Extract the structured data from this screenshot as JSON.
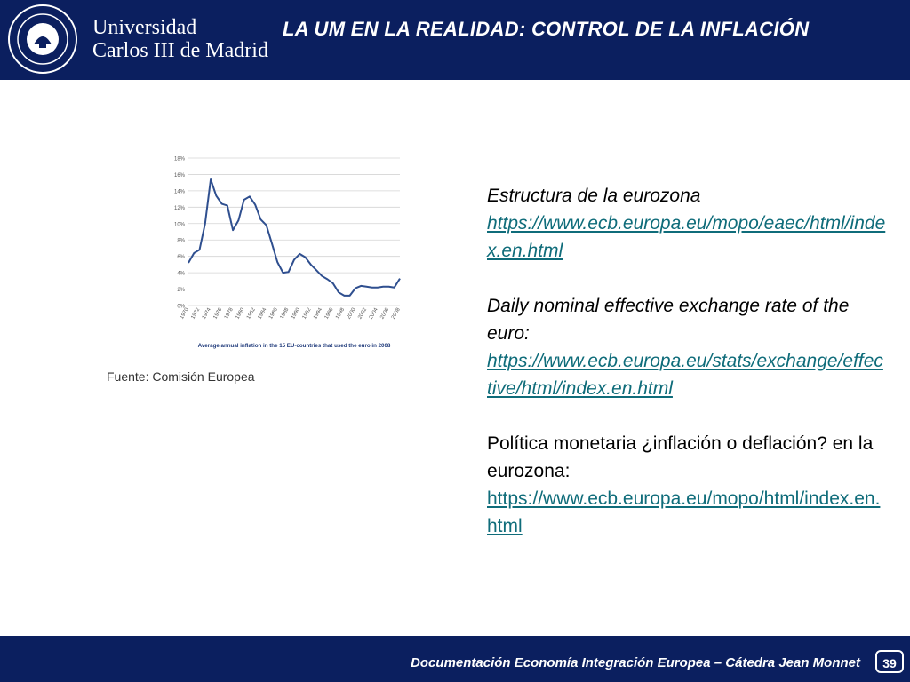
{
  "header": {
    "logo_line1": "Universidad",
    "logo_line2": "Carlos III de Madrid",
    "title": "LA UM EN LA REALIDAD: CONTROL DE LA INFLACIÓN"
  },
  "chart_data": {
    "type": "line",
    "title": "Average annual inflation in the 15 EU-countries that used the euro in 2008",
    "xlabel": "",
    "ylabel": "",
    "ylim": [
      0,
      18
    ],
    "yticks": [
      "0%",
      "2%",
      "4%",
      "6%",
      "8%",
      "10%",
      "12%",
      "14%",
      "16%",
      "18%"
    ],
    "xticks": [
      "1970",
      "1972",
      "1974",
      "1976",
      "1978",
      "1980",
      "1982",
      "1984",
      "1986",
      "1988",
      "1990",
      "1992",
      "1994",
      "1996",
      "1998",
      "2000",
      "2002",
      "2004",
      "2006",
      "2008"
    ],
    "grid": true,
    "series": [
      {
        "x": [
          1970,
          1971,
          1972,
          1973,
          1974,
          1975,
          1976,
          1977,
          1978,
          1979,
          1980,
          1981,
          1982,
          1983,
          1984,
          1985,
          1986,
          1987,
          1988,
          1989,
          1990,
          1991,
          1992,
          1993,
          1994,
          1995,
          1996,
          1997,
          1998,
          1999,
          2000,
          2001,
          2002,
          2003,
          2004,
          2005,
          2006,
          2007,
          2008
        ],
        "values": [
          5.2,
          6.4,
          6.8,
          10.0,
          15.4,
          13.4,
          12.4,
          12.2,
          9.2,
          10.4,
          12.9,
          13.3,
          12.3,
          10.5,
          9.8,
          7.6,
          5.3,
          4.0,
          4.1,
          5.6,
          6.3,
          5.9,
          5.0,
          4.3,
          3.6,
          3.2,
          2.7,
          1.6,
          1.2,
          1.2,
          2.1,
          2.4,
          2.3,
          2.2,
          2.2,
          2.3,
          2.3,
          2.2,
          3.3
        ]
      }
    ],
    "color": "#2f4f8f"
  },
  "source": "Fuente:  Comisión Europea",
  "text": {
    "p1_title": "Estructura de la eurozona",
    "p1_link": "https://www.ecb.europa.eu/mopo/eaec/html/index.en.html",
    "p2_title": "Daily nominal effective exchange rate of the euro:",
    "p2_link": "https://www.ecb.europa.eu/stats/exchange/effective/html/index.en.html",
    "p3_title": "Política monetaria ¿inflación o deflación? en la eurozona:",
    "p3_link": "https://www.ecb.europa.eu/mopo/html/index.en.html"
  },
  "footer": {
    "text": "Documentación Economía Integración Europea – Cátedra Jean Monnet",
    "page": "39"
  },
  "colors": {
    "navy": "#0b1f5f",
    "link": "#0f6c7a"
  }
}
